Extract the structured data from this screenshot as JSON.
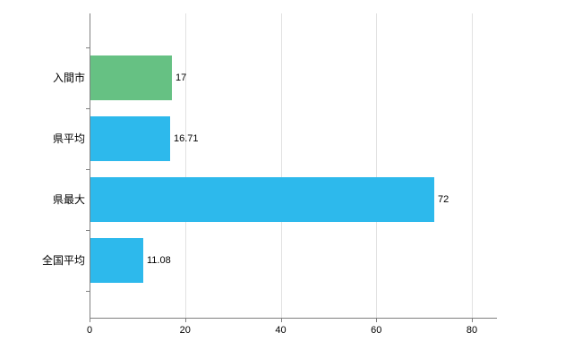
{
  "chart_data": {
    "type": "bar",
    "orientation": "horizontal",
    "title": "",
    "xlabel": "",
    "ylabel": "",
    "categories": [
      "入間市",
      "県平均",
      "県最大",
      "全国平均"
    ],
    "values": [
      17,
      16.71,
      72,
      11.08
    ],
    "value_labels": [
      "17",
      "16.71",
      "72",
      "11.08"
    ],
    "bar_colors": [
      "#66c183",
      "#2db9ec",
      "#2db9ec",
      "#2db9ec"
    ],
    "xticks": [
      0,
      20,
      40,
      60,
      80
    ],
    "xtick_labels": [
      "0",
      "20",
      "40",
      "60",
      "80"
    ],
    "xlim": [
      0,
      85.2
    ],
    "grid": "vertical-only",
    "legend": "none",
    "colors": {
      "green_bar": "#66c183",
      "blue_bar": "#2db9ec",
      "axis": "#808080",
      "gridline": "#e2e2e2",
      "text": "#000000",
      "background": "#ffffff"
    }
  }
}
